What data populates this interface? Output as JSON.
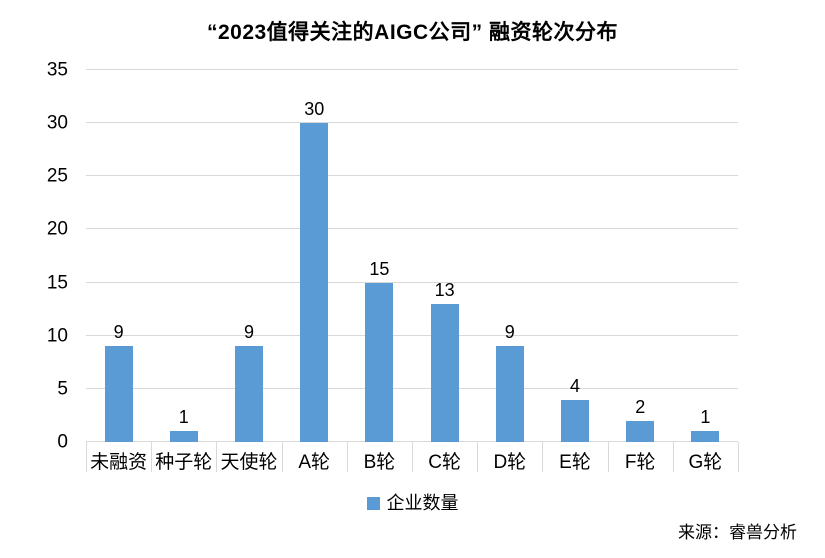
{
  "chart_data": {
    "type": "bar",
    "title": "“2023值得关注的AIGC公司” 融资轮次分布",
    "categories": [
      "未融资",
      "种子轮",
      "天使轮",
      "A轮",
      "B轮",
      "C轮",
      "D轮",
      "E轮",
      "F轮",
      "G轮"
    ],
    "values": [
      9,
      1,
      9,
      30,
      15,
      13,
      9,
      4,
      2,
      1
    ],
    "series": [
      {
        "name": "企业数量",
        "values": [
          9,
          1,
          9,
          30,
          15,
          13,
          9,
          4,
          2,
          1
        ]
      }
    ],
    "xlabel": "",
    "ylabel": "",
    "ylim": [
      0,
      35
    ],
    "yticks": [
      0,
      5,
      10,
      15,
      20,
      25,
      30,
      35
    ],
    "grid": true,
    "legend_position": "bottom",
    "bar_color": "#5B9BD5",
    "gridline_color": "#D9D9D9"
  },
  "legend": {
    "label": "企业数量",
    "color": "#5B9BD5"
  },
  "footer": {
    "source": "来源：睿兽分析"
  }
}
